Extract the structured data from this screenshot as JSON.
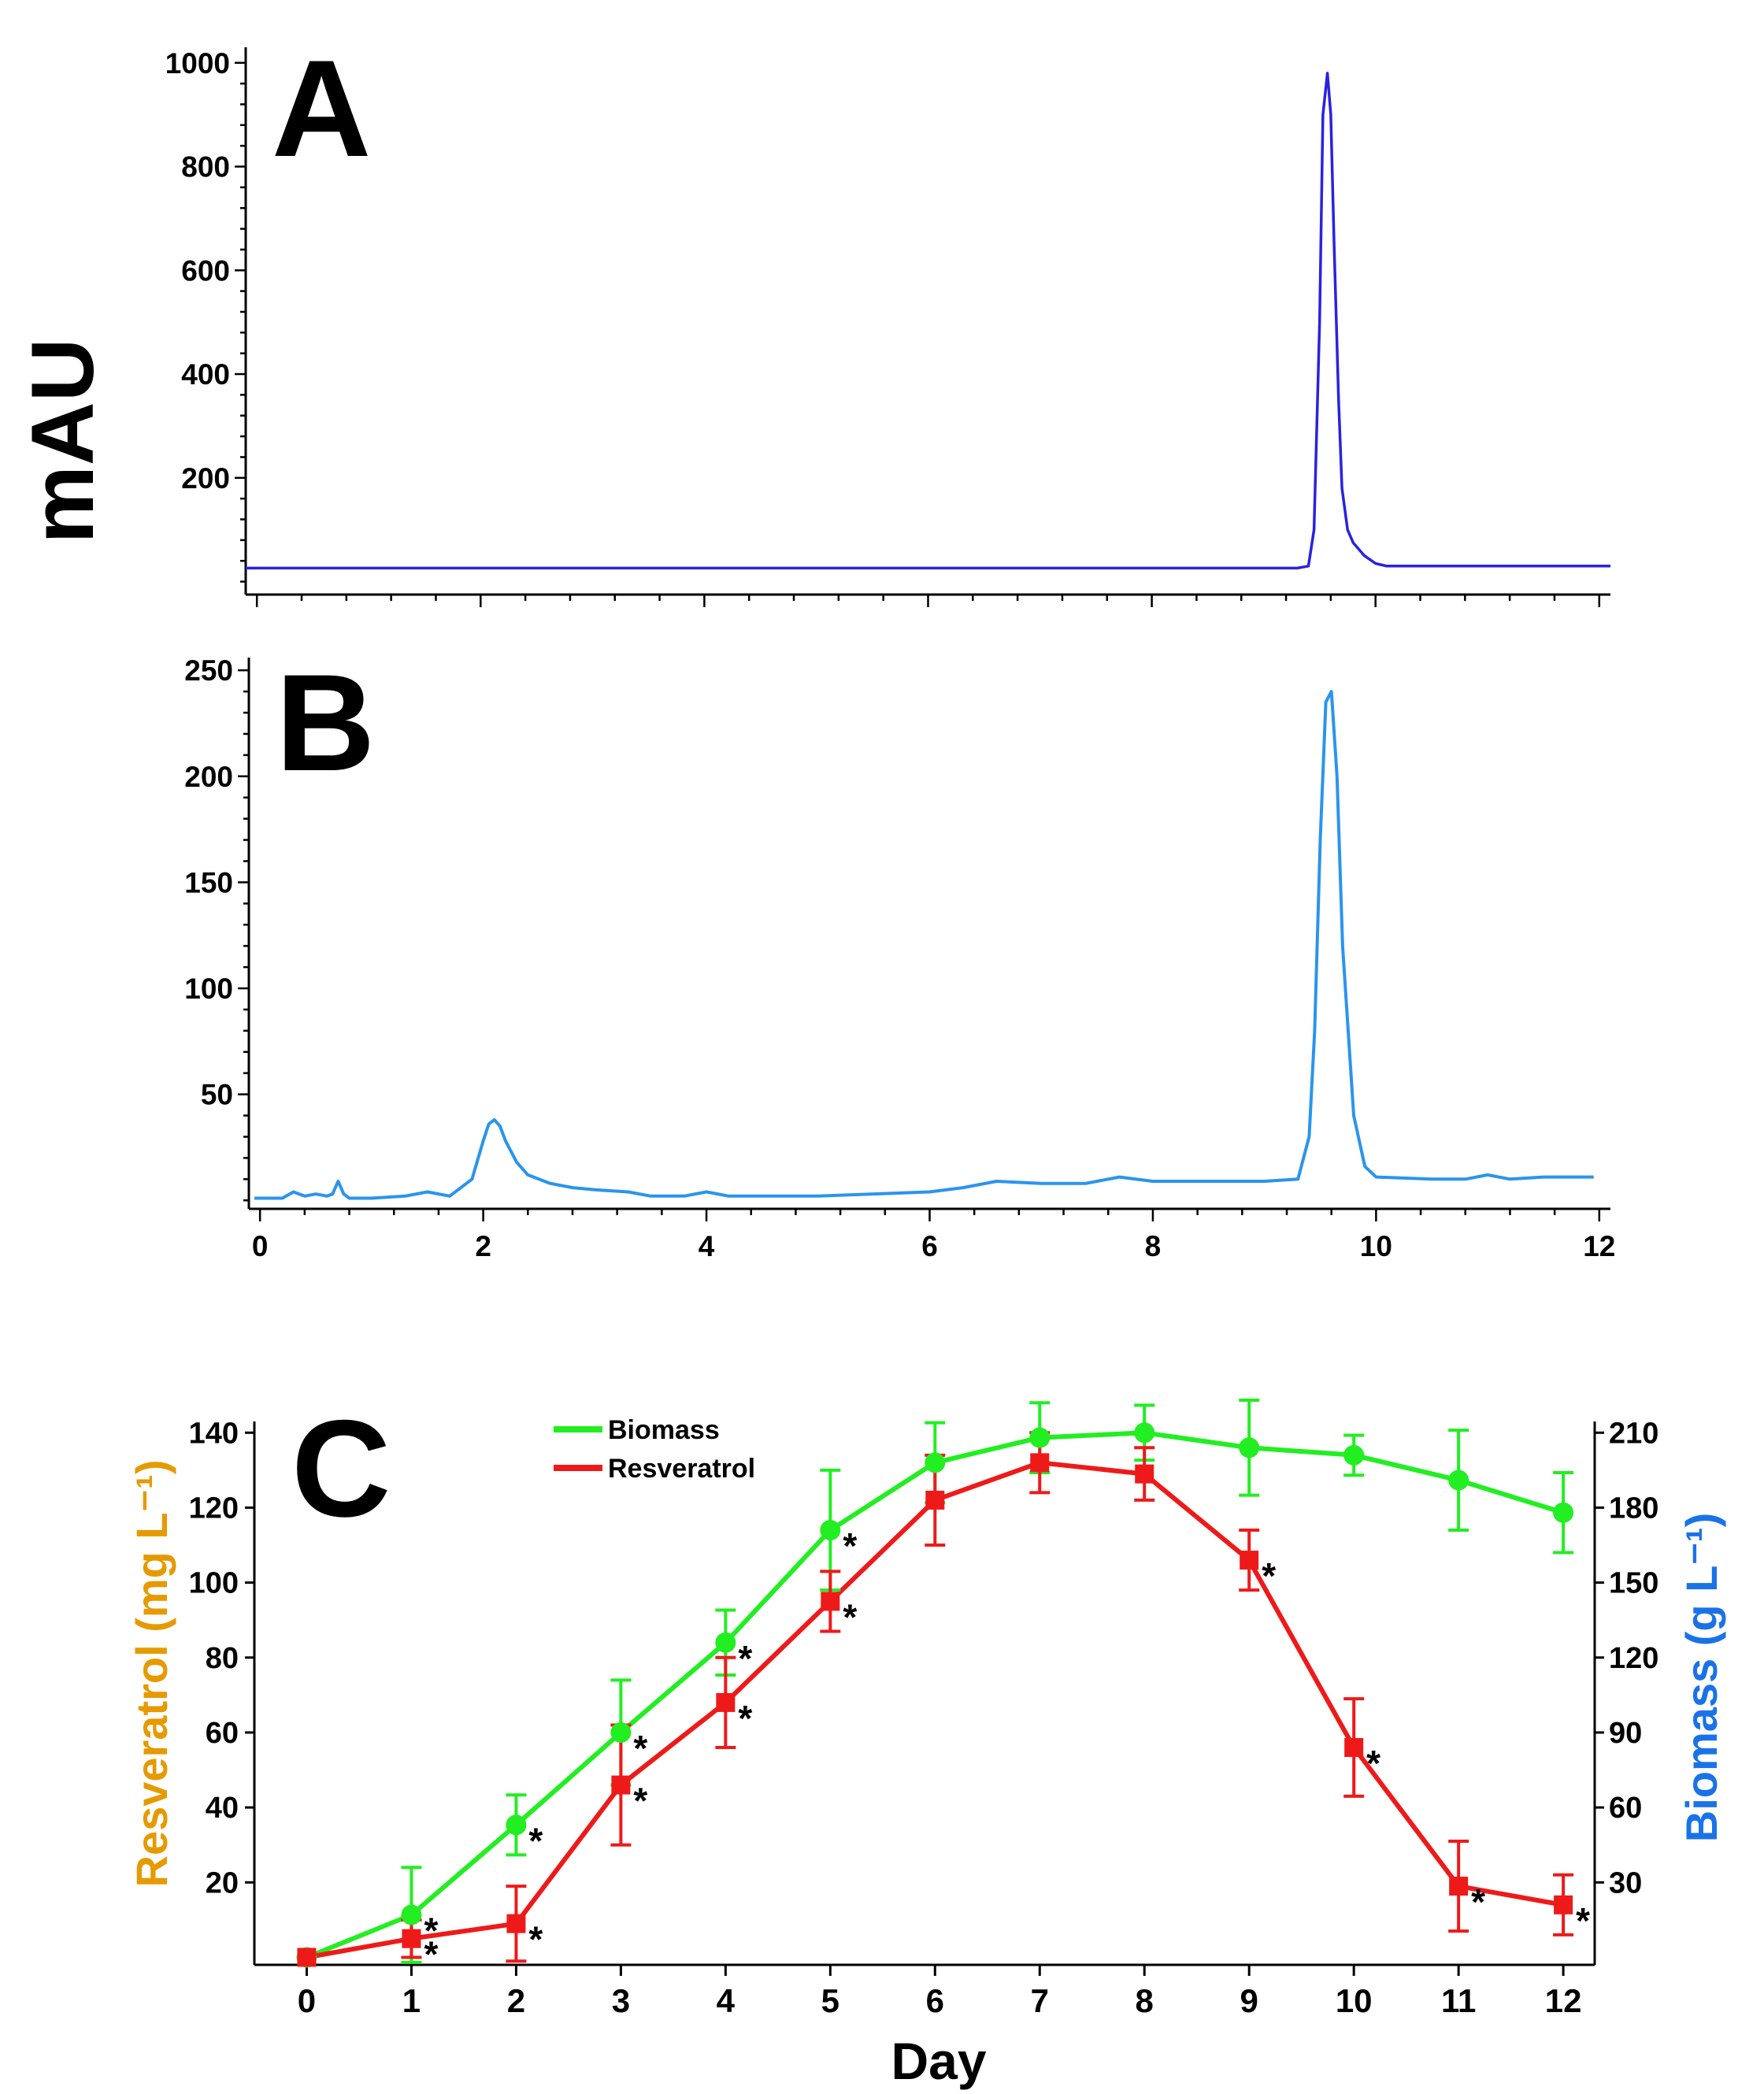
{
  "figure": {
    "shared_ylabel": "mAU",
    "colors": {
      "trace_a": "#2a22e0",
      "trace_b": "#2a94ee",
      "biomass": "#22ee22",
      "resveratrol": "#ee1a1a",
      "axis": "#000000",
      "left_axis_label": "#e69a00",
      "right_axis_label": "#1a72e8"
    }
  },
  "chart_data": [
    {
      "id": "A",
      "type": "line",
      "panel_letter": "A",
      "ylabel": "mAU",
      "xlim": [
        -0.1,
        12.1
      ],
      "ylim": [
        -25,
        1030
      ],
      "yticks": [
        "200",
        "400",
        "600",
        "800",
        "1000"
      ],
      "series": [
        {
          "name": "chromatogram A",
          "x": [
            -0.1,
            9.3,
            9.4,
            9.45,
            9.5,
            9.53,
            9.57,
            9.6,
            9.63,
            9.67,
            9.7,
            9.75,
            9.8,
            9.9,
            10.0,
            10.1,
            12.1
          ],
          "y": [
            26,
            26,
            30,
            100,
            500,
            900,
            980,
            900,
            650,
            350,
            180,
            100,
            75,
            50,
            35,
            30,
            30
          ]
        }
      ]
    },
    {
      "id": "B",
      "type": "line",
      "panel_letter": "B",
      "ylabel": "mAU",
      "xlim": [
        -0.1,
        12.1
      ],
      "ylim": [
        -4,
        256
      ],
      "yticks": [
        "50",
        "100",
        "150",
        "200",
        "250"
      ],
      "xticks": [
        "0",
        "2",
        "4",
        "6",
        "8",
        "10",
        "12"
      ],
      "series": [
        {
          "name": "chromatogram B",
          "x": [
            -0.05,
            0.2,
            0.3,
            0.4,
            0.5,
            0.6,
            0.65,
            0.7,
            0.75,
            0.8,
            1.0,
            1.3,
            1.5,
            1.7,
            1.9,
            2.0,
            2.05,
            2.1,
            2.15,
            2.2,
            2.3,
            2.4,
            2.6,
            2.8,
            3.0,
            3.3,
            3.5,
            3.8,
            4.0,
            4.2,
            4.4,
            5.0,
            6.0,
            6.3,
            6.6,
            7.0,
            7.4,
            7.7,
            8.0,
            8.5,
            9.0,
            9.3,
            9.4,
            9.45,
            9.5,
            9.55,
            9.6,
            9.65,
            9.7,
            9.8,
            9.9,
            10.0,
            10.5,
            10.8,
            11.0,
            11.2,
            11.5,
            11.95
          ],
          "y": [
            1,
            1,
            4,
            2,
            3,
            2,
            3,
            9,
            3,
            1,
            1,
            2,
            4,
            2,
            10,
            28,
            36,
            38,
            35,
            28,
            18,
            12,
            8,
            6,
            5,
            4,
            2,
            2,
            4,
            2,
            2,
            2,
            4,
            6,
            9,
            8,
            8,
            11,
            9,
            9,
            9,
            10,
            30,
            80,
            170,
            235,
            240,
            200,
            120,
            40,
            16,
            11,
            10,
            10,
            12,
            10,
            11,
            11
          ]
        }
      ]
    },
    {
      "id": "C",
      "type": "line",
      "panel_letter": "C",
      "xlabel": "Day",
      "ylabel_left": "Resveratrol (mg L⁻¹)",
      "ylabel_right": "Biomass    (g L⁻¹)",
      "xlim": [
        -0.5,
        12.3
      ],
      "ylim_left": [
        -2,
        143
      ],
      "ylim_right": [
        -3,
        214.5
      ],
      "x": [
        0,
        1,
        2,
        3,
        4,
        5,
        6,
        7,
        8,
        9,
        10,
        11,
        12
      ],
      "xticks": [
        "0",
        "1",
        "2",
        "3",
        "4",
        "5",
        "6",
        "7",
        "8",
        "9",
        "10",
        "11",
        "12"
      ],
      "yticks_left": [
        "20",
        "40",
        "60",
        "80",
        "100",
        "120",
        "140"
      ],
      "yticks_right": [
        "30",
        "60",
        "90",
        "120",
        "150",
        "180",
        "210"
      ],
      "legend": {
        "position": "top-left",
        "entries": [
          "Biomass",
          "Resveratrol"
        ]
      },
      "series": [
        {
          "name": "Biomass",
          "axis": "right",
          "values": [
            0,
            17,
            53,
            90,
            126,
            171,
            198,
            208,
            210,
            204,
            201,
            191,
            178
          ],
          "errors": [
            0,
            19,
            12,
            21,
            13,
            24,
            16,
            14,
            11,
            19,
            8,
            20,
            16
          ],
          "significant": [
            false,
            true,
            true,
            true,
            true,
            true,
            false,
            false,
            false,
            false,
            false,
            false,
            false
          ]
        },
        {
          "name": "Resveratrol",
          "axis": "left",
          "values": [
            0,
            5,
            9,
            46,
            68,
            95,
            122,
            132,
            129,
            106,
            56,
            19,
            14
          ],
          "errors": [
            0,
            5,
            10,
            16,
            12,
            8,
            12,
            8,
            7,
            8,
            13,
            12,
            8
          ],
          "significant": [
            false,
            true,
            true,
            true,
            true,
            true,
            false,
            false,
            false,
            true,
            true,
            true,
            true
          ]
        }
      ],
      "significance_marker": "*"
    }
  ]
}
